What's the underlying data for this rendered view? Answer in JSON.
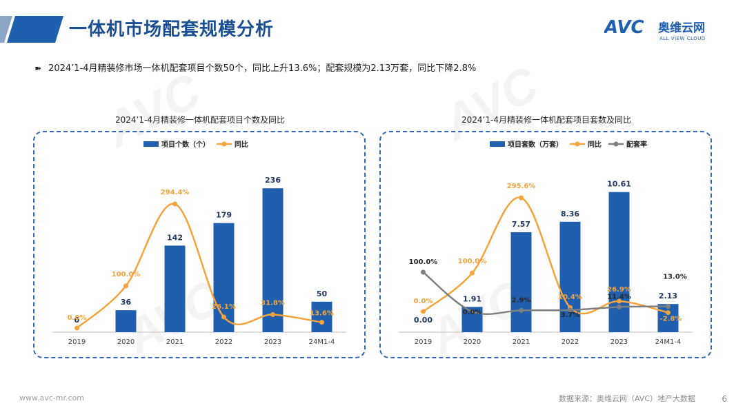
{
  "page": {
    "title": "一体机市场配套规模分析",
    "bullet": "2024’1-4月精装修市场一体机配套项目个数50个，同比上升13.6%；配套规模为2.13万套，同比下降2.8%",
    "footer_url": "www.avc-mr.com",
    "source": "数据来源：奥维云网（AVC）地产大数据",
    "page_number": "6",
    "colors": {
      "brand_blue": "#1e5fae",
      "bar_blue": "#1f5fae",
      "line_orange": "#f5a33a",
      "line_gray": "#7f7f7f"
    }
  },
  "logo": {
    "mark": "AVC",
    "name": "奥维云网",
    "tagline": "ALL VIEW CLOUD"
  },
  "watermark": {
    "mark": "AVC",
    "name": "奥维云网",
    "tagline": "ALL VIEW CLOUD"
  },
  "chart_data": [
    {
      "type": "bar",
      "title": "2024’1-4月精装修一体机配套项目个数及同比",
      "categories": [
        "2019",
        "2020",
        "2021",
        "2022",
        "2023",
        "24M1-4"
      ],
      "series": [
        {
          "name": "项目个数（个）",
          "kind": "bar",
          "values": [
            0,
            36,
            142,
            179,
            236,
            50
          ],
          "labels": [
            "0",
            "36",
            "142",
            "179",
            "236",
            "50"
          ]
        },
        {
          "name": "同比",
          "kind": "line",
          "values": [
            0.0,
            100.0,
            294.4,
            26.1,
            31.8,
            13.6
          ],
          "labels": [
            "0.0%",
            "100.0%",
            "294.4%",
            "26.1%",
            "31.8%",
            "13.6%"
          ]
        }
      ],
      "legend": "top-left",
      "grid": false
    },
    {
      "type": "bar",
      "title": "2024’1-4月精装修一体机配套项目套数及同比",
      "categories": [
        "2019",
        "2020",
        "2021",
        "2022",
        "2023",
        "24M1-4"
      ],
      "series": [
        {
          "name": "项目套数（万套）",
          "kind": "bar",
          "values": [
            0.0,
            1.91,
            7.57,
            8.36,
            10.61,
            2.13
          ],
          "labels": [
            "0.00",
            "1.91",
            "7.57",
            "8.36",
            "10.61",
            "2.13"
          ]
        },
        {
          "name": "同比",
          "kind": "line",
          "values": [
            0.0,
            100.0,
            295.6,
            10.4,
            26.9,
            -2.8
          ],
          "labels": [
            "0.0%",
            "100.0%",
            "295.6%",
            "10.4%",
            "26.9%",
            "-2.8%"
          ]
        },
        {
          "name": "配套率",
          "kind": "line",
          "values": [
            100.0,
            0.0,
            2.9,
            3.7,
            11.4,
            13.0
          ],
          "labels": [
            "100.0%",
            "0.0%",
            "2.9%",
            "3.7%",
            "11.4%",
            "13.0%"
          ]
        }
      ],
      "legend": "top-left",
      "grid": false
    }
  ]
}
